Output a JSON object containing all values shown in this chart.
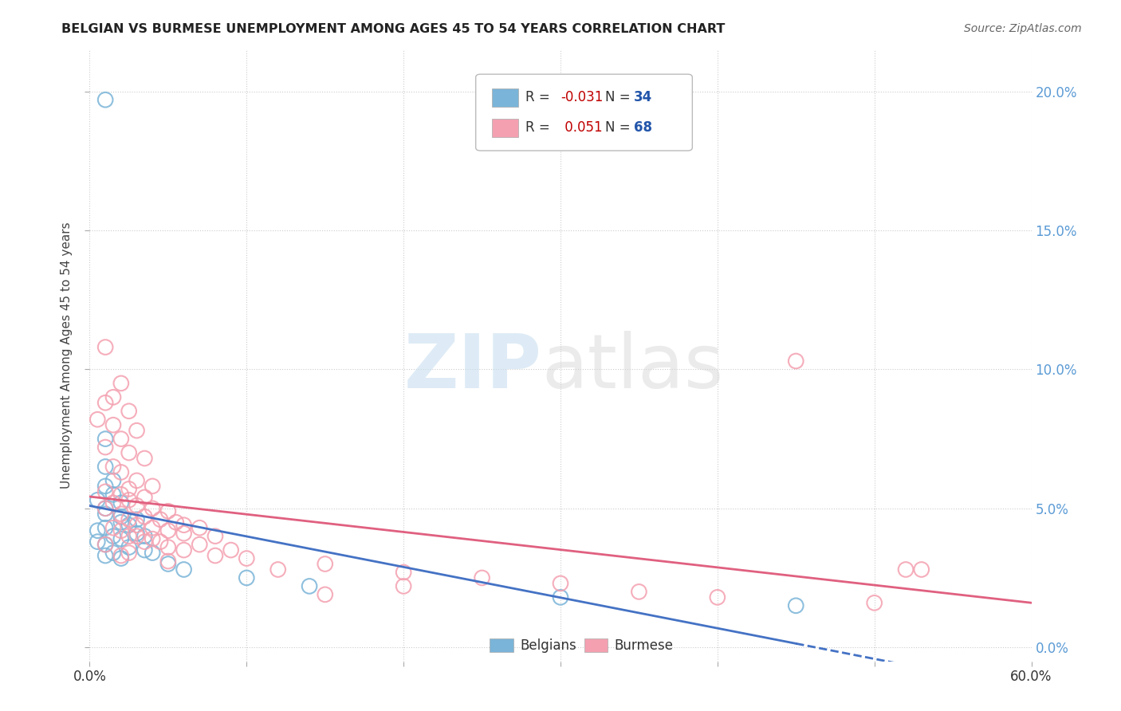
{
  "title": "BELGIAN VS BURMESE UNEMPLOYMENT AMONG AGES 45 TO 54 YEARS CORRELATION CHART",
  "source": "Source: ZipAtlas.com",
  "ylabel": "Unemployment Among Ages 45 to 54 years",
  "xlim": [
    0.0,
    0.6
  ],
  "ylim": [
    -0.005,
    0.215
  ],
  "xticks": [
    0.0,
    0.1,
    0.2,
    0.3,
    0.4,
    0.5,
    0.6
  ],
  "yticks": [
    0.0,
    0.05,
    0.1,
    0.15,
    0.2
  ],
  "ytick_labels": [
    "0.0%",
    "5.0%",
    "10.0%",
    "15.0%",
    "20.0%"
  ],
  "xtick_labels": [
    "0.0%",
    "",
    "",
    "",
    "",
    "",
    "60.0%"
  ],
  "belgian_color": "#7ab4d8",
  "burmese_color": "#f4a0b0",
  "belgian_edge": "#5a9ec8",
  "burmese_edge": "#e07090",
  "belgian_line_color": "#4472c4",
  "burmese_line_color": "#e06080",
  "belgian_R": -0.031,
  "belgian_N": 34,
  "burmese_R": 0.051,
  "burmese_N": 68,
  "background_color": "#ffffff",
  "grid_color": "#cccccc",
  "title_color": "#222222",
  "source_color": "#666666",
  "axis_color": "#5b9bd5",
  "belgian_points": [
    [
      0.01,
      0.197
    ],
    [
      0.01,
      0.075
    ],
    [
      0.01,
      0.065
    ],
    [
      0.015,
      0.06
    ],
    [
      0.01,
      0.058
    ],
    [
      0.015,
      0.055
    ],
    [
      0.005,
      0.053
    ],
    [
      0.02,
      0.052
    ],
    [
      0.01,
      0.05
    ],
    [
      0.01,
      0.048
    ],
    [
      0.02,
      0.047
    ],
    [
      0.03,
      0.046
    ],
    [
      0.02,
      0.045
    ],
    [
      0.025,
      0.044
    ],
    [
      0.01,
      0.043
    ],
    [
      0.005,
      0.042
    ],
    [
      0.03,
      0.041
    ],
    [
      0.035,
      0.04
    ],
    [
      0.015,
      0.04
    ],
    [
      0.02,
      0.039
    ],
    [
      0.005,
      0.038
    ],
    [
      0.01,
      0.037
    ],
    [
      0.025,
      0.036
    ],
    [
      0.035,
      0.035
    ],
    [
      0.015,
      0.034
    ],
    [
      0.04,
      0.034
    ],
    [
      0.01,
      0.033
    ],
    [
      0.02,
      0.032
    ],
    [
      0.05,
      0.03
    ],
    [
      0.06,
      0.028
    ],
    [
      0.1,
      0.025
    ],
    [
      0.14,
      0.022
    ],
    [
      0.3,
      0.018
    ],
    [
      0.45,
      0.015
    ]
  ],
  "burmese_points": [
    [
      0.01,
      0.108
    ],
    [
      0.02,
      0.095
    ],
    [
      0.015,
      0.09
    ],
    [
      0.01,
      0.088
    ],
    [
      0.025,
      0.085
    ],
    [
      0.005,
      0.082
    ],
    [
      0.015,
      0.08
    ],
    [
      0.03,
      0.078
    ],
    [
      0.02,
      0.075
    ],
    [
      0.01,
      0.072
    ],
    [
      0.025,
      0.07
    ],
    [
      0.035,
      0.068
    ],
    [
      0.015,
      0.065
    ],
    [
      0.02,
      0.063
    ],
    [
      0.03,
      0.06
    ],
    [
      0.04,
      0.058
    ],
    [
      0.025,
      0.057
    ],
    [
      0.01,
      0.056
    ],
    [
      0.02,
      0.055
    ],
    [
      0.035,
      0.054
    ],
    [
      0.025,
      0.053
    ],
    [
      0.015,
      0.052
    ],
    [
      0.03,
      0.051
    ],
    [
      0.04,
      0.05
    ],
    [
      0.01,
      0.05
    ],
    [
      0.05,
      0.049
    ],
    [
      0.02,
      0.048
    ],
    [
      0.035,
      0.047
    ],
    [
      0.025,
      0.046
    ],
    [
      0.045,
      0.046
    ],
    [
      0.055,
      0.045
    ],
    [
      0.03,
      0.044
    ],
    [
      0.06,
      0.044
    ],
    [
      0.07,
      0.043
    ],
    [
      0.04,
      0.043
    ],
    [
      0.015,
      0.043
    ],
    [
      0.05,
      0.042
    ],
    [
      0.02,
      0.042
    ],
    [
      0.06,
      0.041
    ],
    [
      0.03,
      0.04
    ],
    [
      0.08,
      0.04
    ],
    [
      0.025,
      0.04
    ],
    [
      0.04,
      0.039
    ],
    [
      0.035,
      0.038
    ],
    [
      0.045,
      0.038
    ],
    [
      0.01,
      0.037
    ],
    [
      0.07,
      0.037
    ],
    [
      0.05,
      0.036
    ],
    [
      0.06,
      0.035
    ],
    [
      0.09,
      0.035
    ],
    [
      0.025,
      0.034
    ],
    [
      0.08,
      0.033
    ],
    [
      0.02,
      0.033
    ],
    [
      0.1,
      0.032
    ],
    [
      0.05,
      0.031
    ],
    [
      0.15,
      0.03
    ],
    [
      0.12,
      0.028
    ],
    [
      0.2,
      0.027
    ],
    [
      0.25,
      0.025
    ],
    [
      0.3,
      0.023
    ],
    [
      0.2,
      0.022
    ],
    [
      0.35,
      0.02
    ],
    [
      0.15,
      0.019
    ],
    [
      0.4,
      0.018
    ],
    [
      0.45,
      0.103
    ],
    [
      0.5,
      0.016
    ],
    [
      0.52,
      0.028
    ],
    [
      0.53,
      0.028
    ]
  ]
}
